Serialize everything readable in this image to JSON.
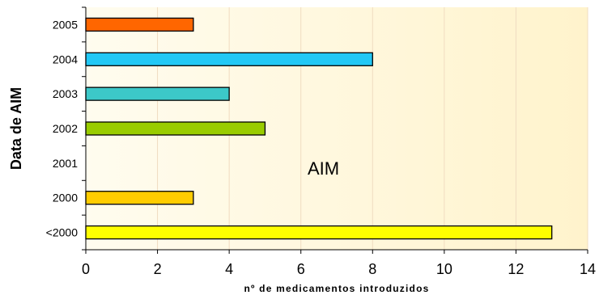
{
  "chart_data": {
    "type": "bar",
    "orientation": "horizontal",
    "categories": [
      "2005",
      "2004",
      "2003",
      "2002",
      "2001",
      "2000",
      "<2000"
    ],
    "values": [
      3,
      8,
      4,
      5,
      0,
      3,
      13
    ],
    "bar_colors": [
      "#ff6600",
      "#22c8f5",
      "#3cc8c8",
      "#99cc00",
      "#ffffff",
      "#ffcc00",
      "#ffff00"
    ],
    "xlabel": "nº de medicamentos introduzidos",
    "ylabel": "Data de AIM",
    "xlim": [
      0,
      14
    ],
    "xticks": [
      "0",
      "2",
      "4",
      "6",
      "8",
      "10",
      "12",
      "14"
    ],
    "annotation": "AIM",
    "grid": "vertical",
    "plot_background": "#fff8d8",
    "gridline_color": "#f0dcc0"
  }
}
